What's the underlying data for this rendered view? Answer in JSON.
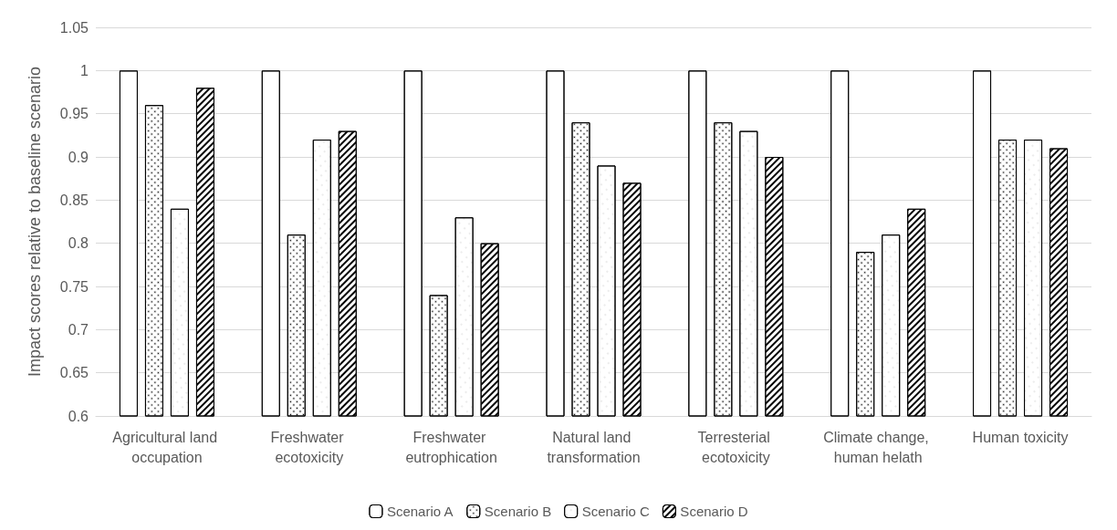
{
  "chart_data": {
    "type": "bar",
    "ylabel": "Impact scores relative to baseline scenario",
    "categories": [
      "Agricultural land occupation",
      "Freshwater ecotoxicity",
      "Freshwater eutrophication",
      "Natural land transformation",
      "Terresterial ecotoxicity",
      "Climate change, human helath",
      "Human toxicity"
    ],
    "series": [
      {
        "name": "Scenario A",
        "color": "#ffffff",
        "values": [
          1,
          1,
          1,
          1,
          1,
          1,
          1
        ]
      },
      {
        "name": "Scenario B",
        "color": "#ffffff",
        "values": [
          0.96,
          0.81,
          0.74,
          0.94,
          0.94,
          0.79,
          0.92
        ]
      },
      {
        "name": "Scenario C",
        "color": "#ffffff",
        "values": [
          0.84,
          0.92,
          0.83,
          0.89,
          0.93,
          0.81,
          0.92
        ]
      },
      {
        "name": "Scenario D",
        "color": "#ffffff",
        "values": [
          0.98,
          0.93,
          0.8,
          0.87,
          0.9,
          0.84,
          0.91
        ]
      }
    ],
    "ylim": [
      0.6,
      1.05
    ],
    "yticks": [
      0.6,
      0.65,
      0.7,
      0.75,
      0.8,
      0.85,
      0.9,
      0.95,
      1,
      1.05
    ],
    "grid": "y",
    "legend": "bottom"
  }
}
